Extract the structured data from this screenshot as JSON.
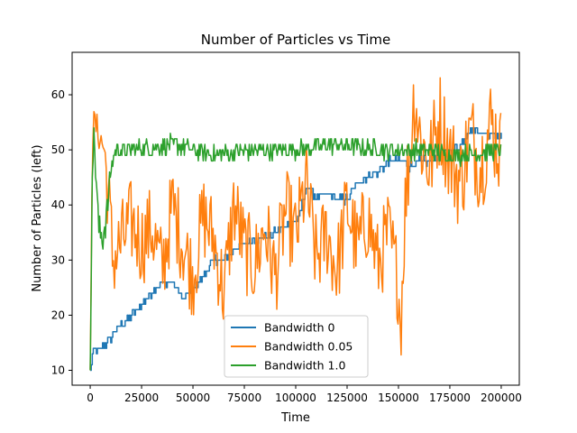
{
  "chart_data": {
    "type": "line",
    "title": "Number of Particles vs Time",
    "xlabel": "Time",
    "ylabel": "Number of Particles (left)",
    "xlim": [
      -8800,
      208800
    ],
    "ylim": [
      7.3,
      67.7
    ],
    "xticks": [
      0,
      25000,
      50000,
      75000,
      100000,
      125000,
      150000,
      175000,
      200000
    ],
    "xtick_labels": [
      "0",
      "25000",
      "50000",
      "75000",
      "100000",
      "125000",
      "150000",
      "175000",
      "200000"
    ],
    "yticks": [
      10,
      20,
      30,
      40,
      50,
      60
    ],
    "ytick_labels": [
      "10",
      "20",
      "30",
      "40",
      "50",
      "60"
    ],
    "grid": false,
    "legend_position": "lower center",
    "series": [
      {
        "name": "Bandwidth 0",
        "color": "#1f77b4",
        "points": [
          [
            0,
            10
          ],
          [
            1000,
            13
          ],
          [
            8000,
            15
          ],
          [
            12000,
            17
          ],
          [
            20000,
            20
          ],
          [
            25000,
            22
          ],
          [
            30000,
            24
          ],
          [
            35000,
            26
          ],
          [
            40000,
            26
          ],
          [
            45000,
            23
          ],
          [
            50000,
            25
          ],
          [
            55000,
            27
          ],
          [
            60000,
            30
          ],
          [
            65000,
            30
          ],
          [
            70000,
            32
          ],
          [
            75000,
            33
          ],
          [
            80000,
            34
          ],
          [
            85000,
            34
          ],
          [
            90000,
            35
          ],
          [
            95000,
            36
          ],
          [
            100000,
            37
          ],
          [
            103000,
            40
          ],
          [
            106000,
            44
          ],
          [
            110000,
            41
          ],
          [
            115000,
            42
          ],
          [
            120000,
            41
          ],
          [
            125000,
            41
          ],
          [
            130000,
            44
          ],
          [
            135000,
            45
          ],
          [
            140000,
            46
          ],
          [
            145000,
            48
          ],
          [
            150000,
            48
          ],
          [
            155000,
            47
          ],
          [
            160000,
            48
          ],
          [
            165000,
            48
          ],
          [
            170000,
            49
          ],
          [
            175000,
            50
          ],
          [
            180000,
            51
          ],
          [
            185000,
            54
          ],
          [
            190000,
            53
          ],
          [
            195000,
            53
          ],
          [
            200000,
            52
          ]
        ]
      },
      {
        "name": "Bandwidth 0.05",
        "color": "#ff7f0e",
        "points": [
          [
            0,
            10
          ],
          [
            1000,
            52
          ],
          [
            2000,
            55
          ],
          [
            3000,
            54
          ],
          [
            5000,
            52
          ],
          [
            7000,
            50
          ],
          [
            9000,
            41
          ],
          [
            11000,
            30
          ],
          [
            15000,
            33
          ],
          [
            20000,
            37
          ],
          [
            25000,
            33
          ],
          [
            30000,
            36
          ],
          [
            35000,
            28
          ],
          [
            40000,
            40
          ],
          [
            45000,
            33
          ],
          [
            50000,
            27
          ],
          [
            55000,
            38
          ],
          [
            60000,
            34
          ],
          [
            65000,
            24
          ],
          [
            70000,
            40
          ],
          [
            75000,
            32
          ],
          [
            80000,
            29
          ],
          [
            85000,
            36
          ],
          [
            90000,
            27
          ],
          [
            95000,
            39
          ],
          [
            100000,
            34
          ],
          [
            105000,
            44
          ],
          [
            110000,
            30
          ],
          [
            115000,
            35
          ],
          [
            120000,
            28
          ],
          [
            125000,
            40
          ],
          [
            130000,
            32
          ],
          [
            135000,
            38
          ],
          [
            140000,
            29
          ],
          [
            145000,
            35
          ],
          [
            150000,
            26
          ],
          [
            151000,
            17
          ],
          [
            153000,
            38
          ],
          [
            155000,
            48
          ],
          [
            158000,
            61
          ],
          [
            160000,
            53
          ],
          [
            165000,
            47
          ],
          [
            170000,
            56
          ],
          [
            175000,
            49
          ],
          [
            180000,
            44
          ],
          [
            185000,
            53
          ],
          [
            190000,
            47
          ],
          [
            195000,
            55
          ],
          [
            200000,
            49
          ]
        ]
      },
      {
        "name": "Bandwidth 1.0",
        "color": "#2ca02c",
        "points": [
          [
            0,
            10
          ],
          [
            1000,
            48
          ],
          [
            2000,
            52
          ],
          [
            4000,
            36
          ],
          [
            6000,
            34
          ],
          [
            8000,
            38
          ],
          [
            10000,
            46
          ],
          [
            12000,
            50
          ],
          [
            20000,
            50
          ],
          [
            40000,
            51
          ],
          [
            60000,
            49
          ],
          [
            80000,
            50
          ],
          [
            100000,
            50
          ],
          [
            120000,
            51
          ],
          [
            140000,
            50
          ],
          [
            160000,
            50
          ],
          [
            180000,
            49
          ],
          [
            200000,
            50
          ]
        ]
      }
    ]
  }
}
